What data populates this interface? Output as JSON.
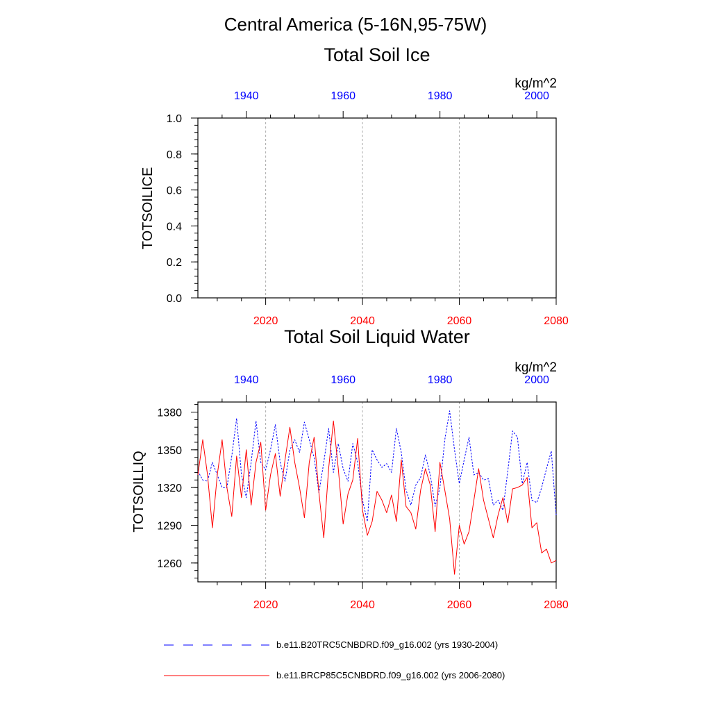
{
  "header": {
    "title": "Central America (5-16N,95-75W)"
  },
  "colors": {
    "historical": "#0000ff",
    "future": "#ff0000",
    "axis": "#000000",
    "grid": "#aaaaaa"
  },
  "legend": {
    "placement": "bottom",
    "items": [
      {
        "label": "b.e11.B20TRC5CNBDRD.f09_g16.002 (yrs 1930-2004)",
        "color": "#0000ff",
        "style": "dashed"
      },
      {
        "label": "b.e11.BRCP85C5CNBDRD.f09_g16.002 (yrs 2006-2080)",
        "color": "#ff0000",
        "style": "solid"
      }
    ]
  },
  "chart_data": [
    {
      "type": "line",
      "title": "Total Soil Ice",
      "units": "kg/m^2",
      "ylabel": "TOTSOILICE",
      "ylim": [
        0.0,
        1.0
      ],
      "yticks": [
        "0.0",
        "0.2",
        "0.4",
        "0.6",
        "0.8",
        "1.0"
      ],
      "bottom_xlim": [
        2006,
        2080
      ],
      "bottom_xticks": [
        "2020",
        "2040",
        "2060",
        "2080"
      ],
      "top_xlim": [
        1930,
        2004
      ],
      "top_xticks": [
        "1940",
        "1960",
        "1980",
        "2000"
      ],
      "grid": "vertical dotted at bottom ticks",
      "series": []
    },
    {
      "type": "line",
      "title": "Total Soil Liquid Water",
      "units": "kg/m^2",
      "ylabel": "TOTSOILLIQ",
      "ylim": [
        1245,
        1388
      ],
      "yticks": [
        "1260",
        "1290",
        "1320",
        "1350",
        "1380"
      ],
      "bottom_xlim": [
        2006,
        2080
      ],
      "bottom_xticks": [
        "2020",
        "2040",
        "2060",
        "2080"
      ],
      "top_xlim": [
        1930,
        2004
      ],
      "top_xticks": [
        "1940",
        "1960",
        "1980",
        "2000"
      ],
      "grid": "vertical dotted at bottom ticks",
      "series": [
        {
          "name": "b.e11.B20TRC5CNBDRD.f09_g16.002 (yrs 1930-2004)",
          "axis": "top",
          "style": "dashed",
          "color": "#0000ff",
          "x": [
            1930,
            1931,
            1932,
            1933,
            1934,
            1935,
            1936,
            1937,
            1938,
            1939,
            1940,
            1941,
            1942,
            1943,
            1944,
            1945,
            1946,
            1947,
            1948,
            1949,
            1950,
            1951,
            1952,
            1953,
            1954,
            1955,
            1956,
            1957,
            1958,
            1959,
            1960,
            1961,
            1962,
            1963,
            1964,
            1965,
            1966,
            1967,
            1968,
            1969,
            1970,
            1971,
            1972,
            1973,
            1974,
            1975,
            1976,
            1977,
            1978,
            1979,
            1980,
            1981,
            1982,
            1983,
            1984,
            1985,
            1986,
            1987,
            1988,
            1989,
            1990,
            1991,
            1992,
            1993,
            1994,
            1995,
            1996,
            1997,
            1998,
            1999,
            2000,
            2001,
            2002,
            2003,
            2004
          ],
          "y": [
            1333,
            1326,
            1325,
            1340,
            1330,
            1320,
            1320,
            1345,
            1375,
            1330,
            1312,
            1340,
            1373,
            1340,
            1334,
            1350,
            1370,
            1340,
            1325,
            1350,
            1358,
            1348,
            1372,
            1358,
            1344,
            1316,
            1340,
            1367,
            1332,
            1355,
            1335,
            1325,
            1355,
            1340,
            1310,
            1293,
            1350,
            1342,
            1336,
            1339,
            1332,
            1367,
            1348,
            1318,
            1306,
            1322,
            1328,
            1346,
            1330,
            1305,
            1320,
            1358,
            1381,
            1350,
            1323,
            1342,
            1360,
            1330,
            1332,
            1326,
            1327,
            1306,
            1310,
            1302,
            1333,
            1365,
            1360,
            1323,
            1340,
            1310,
            1308,
            1320,
            1335,
            1349,
            1298
          ]
        },
        {
          "name": "b.e11.BRCP85C5CNBDRD.f09_g16.002 (yrs 2006-2080)",
          "axis": "bottom",
          "style": "solid",
          "color": "#ff0000",
          "x": [
            2006,
            2007,
            2008,
            2009,
            2010,
            2011,
            2012,
            2013,
            2014,
            2015,
            2016,
            2017,
            2018,
            2019,
            2020,
            2021,
            2022,
            2023,
            2024,
            2025,
            2026,
            2027,
            2028,
            2029,
            2030,
            2031,
            2032,
            2033,
            2034,
            2035,
            2036,
            2037,
            2038,
            2039,
            2040,
            2041,
            2042,
            2043,
            2044,
            2045,
            2046,
            2047,
            2048,
            2049,
            2050,
            2051,
            2052,
            2053,
            2054,
            2055,
            2056,
            2057,
            2058,
            2059,
            2060,
            2061,
            2062,
            2063,
            2064,
            2065,
            2066,
            2067,
            2068,
            2069,
            2070,
            2071,
            2072,
            2073,
            2074,
            2075,
            2076,
            2077,
            2078,
            2079,
            2080
          ],
          "y": [
            1330,
            1358,
            1330,
            1288,
            1330,
            1358,
            1320,
            1297,
            1345,
            1312,
            1350,
            1306,
            1340,
            1356,
            1302,
            1330,
            1347,
            1313,
            1342,
            1368,
            1340,
            1320,
            1296,
            1340,
            1360,
            1316,
            1280,
            1335,
            1373,
            1335,
            1291,
            1315,
            1326,
            1359,
            1302,
            1282,
            1293,
            1317,
            1310,
            1300,
            1314,
            1293,
            1342,
            1305,
            1300,
            1287,
            1318,
            1335,
            1322,
            1285,
            1340,
            1318,
            1295,
            1251,
            1290,
            1275,
            1285,
            1310,
            1335,
            1310,
            1295,
            1280,
            1298,
            1312,
            1292,
            1319,
            1320,
            1322,
            1328,
            1288,
            1292,
            1268,
            1271,
            1260,
            1262
          ]
        }
      ]
    }
  ]
}
